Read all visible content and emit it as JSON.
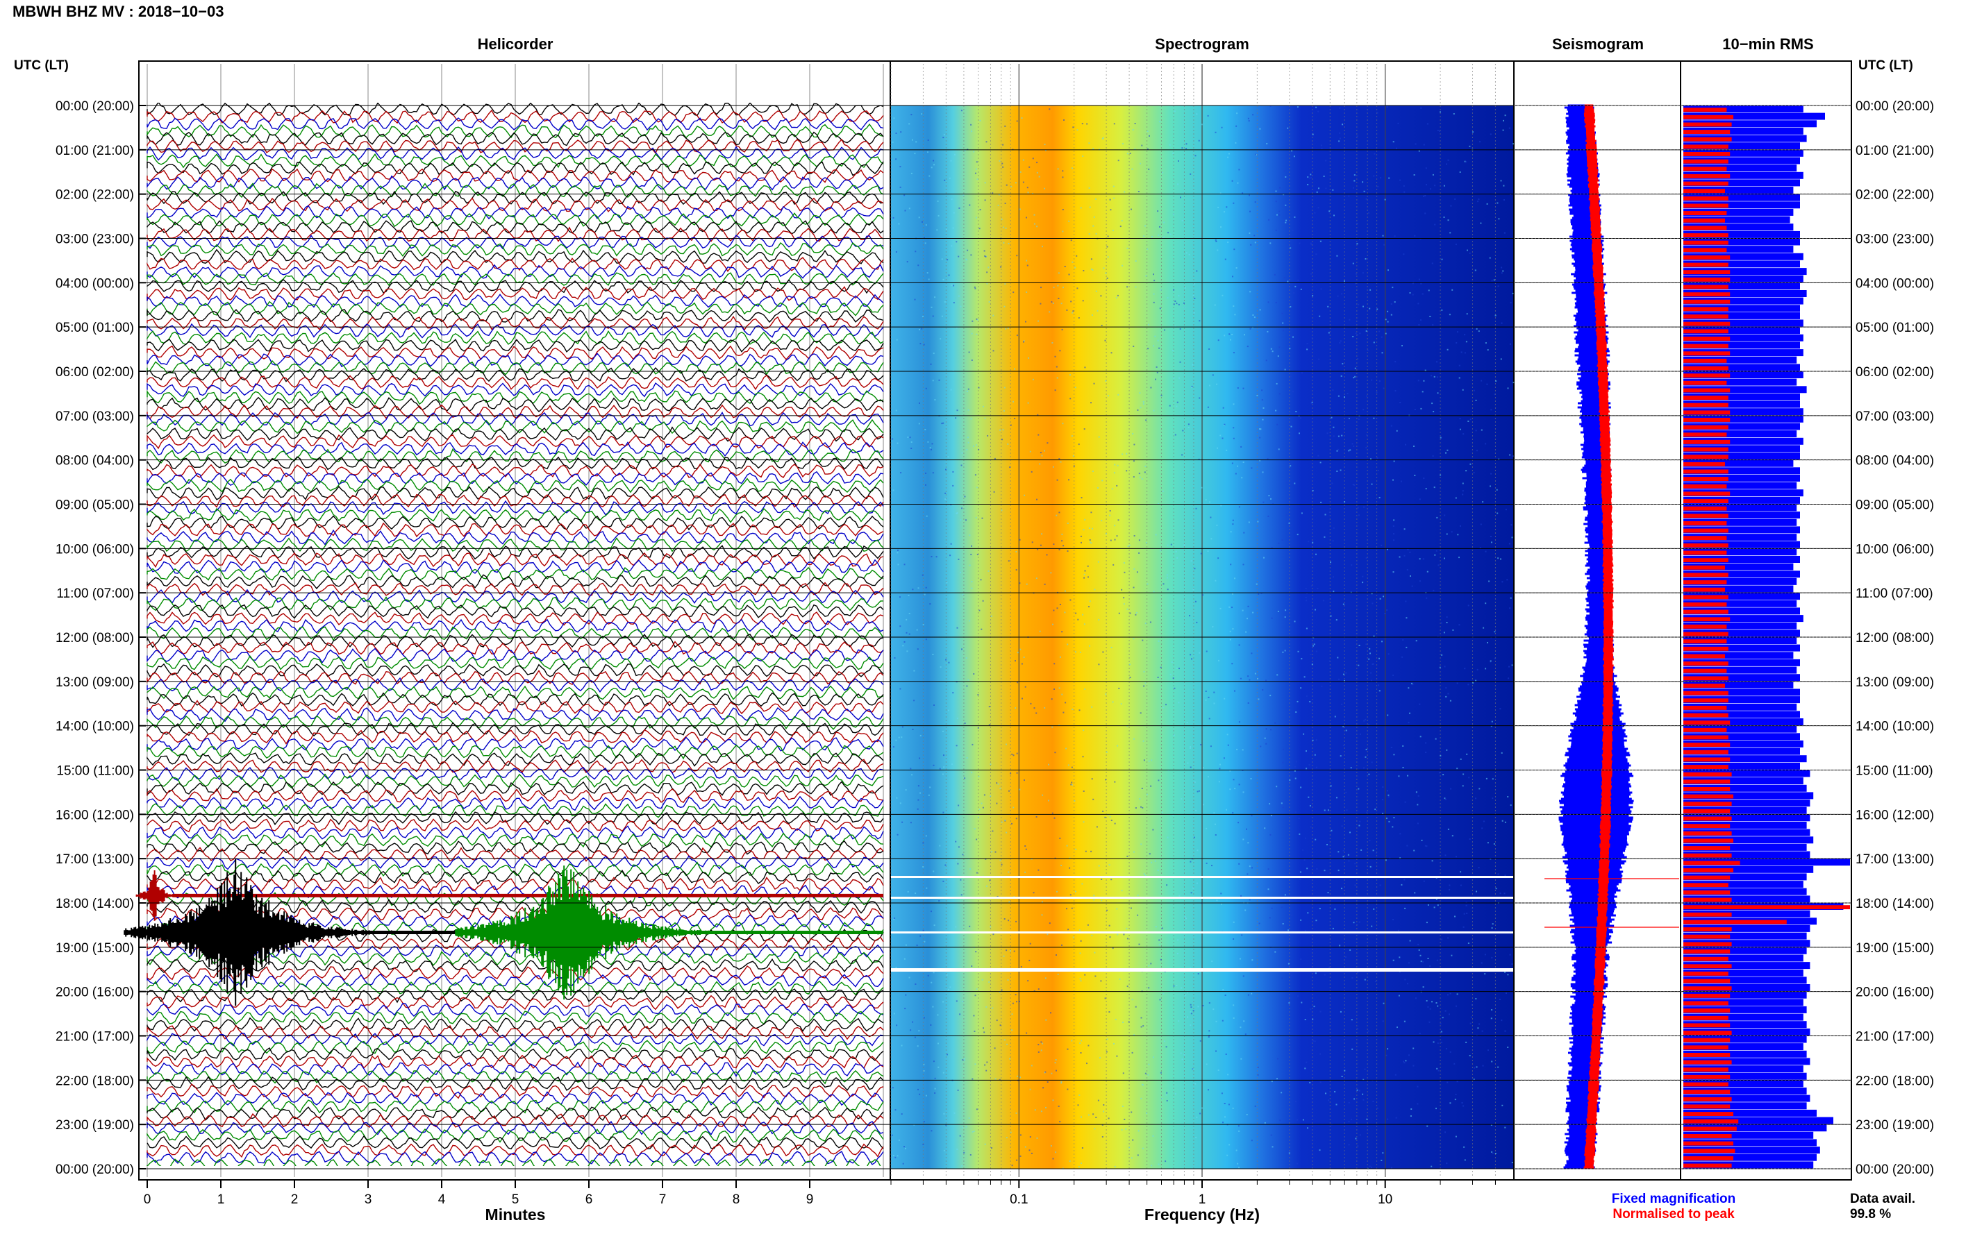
{
  "header": {
    "title": "MBWH BHZ MV : 2018−10−03",
    "utc_label_left": "UTC (LT)",
    "utc_label_right": "UTC (LT)"
  },
  "panels": {
    "helicorder": "Helicorder",
    "spectrogram": "Spectrogram",
    "seismogram": "Seismogram",
    "rms": "10−min RMS"
  },
  "footer": {
    "fixed_magnification": "Fixed magnification",
    "normalised_to_peak": "Normalised to peak",
    "data_avail_label": "Data avail.",
    "data_avail_value": "99.8 %"
  },
  "colors": {
    "trace_black": "#000000",
    "trace_red": "#b00000",
    "trace_blue": "#0000c8",
    "trace_green": "#008c00",
    "blue": "#0000ff",
    "red": "#ff0000"
  },
  "chart_data": [
    {
      "type": "line",
      "panel": "helicorder",
      "title": "Helicorder",
      "xlabel": "Minutes",
      "xlim": [
        0,
        10
      ],
      "xticks": [
        "0",
        "1",
        "2",
        "3",
        "4",
        "5",
        "6",
        "7",
        "8",
        "9"
      ],
      "hour_labels": [
        "00:00 (20:00)",
        "01:00 (21:00)",
        "02:00 (22:00)",
        "03:00 (23:00)",
        "04:00 (00:00)",
        "05:00 (01:00)",
        "06:00 (02:00)",
        "07:00 (03:00)",
        "08:00 (04:00)",
        "09:00 (05:00)",
        "10:00 (06:00)",
        "11:00 (07:00)",
        "12:00 (08:00)",
        "13:00 (09:00)",
        "14:00 (10:00)",
        "15:00 (11:00)",
        "16:00 (12:00)",
        "17:00 (13:00)",
        "18:00 (14:00)",
        "19:00 (15:00)",
        "20:00 (16:00)",
        "21:00 (17:00)",
        "22:00 (18:00)",
        "23:00 (19:00)",
        "00:00 (20:00)"
      ],
      "trace_color_cycle": [
        "black",
        "red",
        "blue",
        "green"
      ],
      "events": [
        {
          "utc": "17:50",
          "minute": 0.1,
          "color": "red"
        },
        {
          "utc": "18:40",
          "minute": 1.2,
          "color": "black"
        },
        {
          "utc": "18:40",
          "minute": 5.7,
          "color": "green"
        }
      ]
    },
    {
      "type": "heatmap",
      "panel": "spectrogram",
      "title": "Spectrogram",
      "xlabel": "Frequency (Hz)",
      "xscale": "log",
      "xticks": [
        "0.1",
        "1",
        "10"
      ],
      "xlim": [
        0.02,
        50
      ],
      "peak_band_hz": 0.2
    },
    {
      "type": "line",
      "panel": "seismogram",
      "title": "Seismogram",
      "series": [
        {
          "name": "Fixed magnification",
          "color": "blue"
        },
        {
          "name": "Normalised to peak",
          "color": "red"
        }
      ]
    },
    {
      "type": "bar",
      "panel": "rms",
      "title": "10−min RMS",
      "orientation": "horizontal",
      "blue_relative": [
        0.72,
        0.85,
        0.8,
        0.72,
        0.74,
        0.7,
        0.72,
        0.7,
        0.68,
        0.72,
        0.7,
        0.66,
        0.7,
        0.7,
        0.66,
        0.64,
        0.66,
        0.7,
        0.7,
        0.66,
        0.72,
        0.7,
        0.74,
        0.72,
        0.7,
        0.74,
        0.72,
        0.7,
        0.7,
        0.72,
        0.7,
        0.72,
        0.7,
        0.72,
        0.68,
        0.7,
        0.72,
        0.68,
        0.74,
        0.7,
        0.7,
        0.72,
        0.72,
        0.7,
        0.68,
        0.72,
        0.7,
        0.7,
        0.66,
        0.7,
        0.7,
        0.68,
        0.72,
        0.7,
        0.68,
        0.7,
        0.68,
        0.7,
        0.68,
        0.7,
        0.68,
        0.7,
        0.66,
        0.7,
        0.68,
        0.66,
        0.7,
        0.68,
        0.7,
        0.72,
        0.68,
        0.7,
        0.68,
        0.7,
        0.66,
        0.7,
        0.68,
        0.7,
        0.66,
        0.7,
        0.7,
        0.68,
        0.7,
        0.72,
        0.68,
        0.7,
        0.72,
        0.7,
        0.74,
        0.7,
        0.76,
        0.72,
        0.74,
        0.78,
        0.76,
        0.74,
        0.76,
        0.74,
        0.76,
        0.78,
        0.74,
        0.76,
        1.0,
        0.78,
        0.74,
        0.72,
        0.74,
        0.76,
        0.96,
        0.76,
        0.8,
        0.76,
        0.74,
        0.76,
        0.74,
        0.72,
        0.76,
        0.72,
        0.74,
        0.76,
        0.74,
        0.72,
        0.74,
        0.72,
        0.74,
        0.76,
        0.74,
        0.72,
        0.74,
        0.76,
        0.72,
        0.74,
        0.72,
        0.74,
        0.76,
        0.74,
        0.8,
        0.9,
        0.86,
        0.78,
        0.8,
        0.82,
        0.8,
        0.78
      ],
      "red_relative": [
        0.26,
        0.3,
        0.29,
        0.28,
        0.29,
        0.27,
        0.28,
        0.27,
        0.26,
        0.28,
        0.27,
        0.25,
        0.27,
        0.27,
        0.26,
        0.25,
        0.26,
        0.27,
        0.27,
        0.26,
        0.28,
        0.27,
        0.28,
        0.28,
        0.27,
        0.28,
        0.28,
        0.27,
        0.27,
        0.28,
        0.27,
        0.28,
        0.27,
        0.28,
        0.26,
        0.27,
        0.28,
        0.26,
        0.28,
        0.27,
        0.27,
        0.28,
        0.28,
        0.27,
        0.26,
        0.28,
        0.27,
        0.27,
        0.25,
        0.27,
        0.27,
        0.26,
        0.28,
        0.27,
        0.26,
        0.27,
        0.26,
        0.27,
        0.26,
        0.27,
        0.26,
        0.27,
        0.25,
        0.27,
        0.26,
        0.25,
        0.27,
        0.26,
        0.27,
        0.28,
        0.26,
        0.27,
        0.26,
        0.27,
        0.25,
        0.27,
        0.26,
        0.27,
        0.25,
        0.27,
        0.27,
        0.26,
        0.27,
        0.28,
        0.26,
        0.27,
        0.28,
        0.27,
        0.28,
        0.27,
        0.29,
        0.28,
        0.28,
        0.3,
        0.29,
        0.28,
        0.29,
        0.28,
        0.29,
        0.3,
        0.28,
        0.29,
        0.34,
        0.3,
        0.28,
        0.27,
        0.28,
        0.29,
        1.0,
        0.29,
        0.62,
        0.29,
        0.28,
        0.29,
        0.28,
        0.27,
        0.29,
        0.27,
        0.28,
        0.29,
        0.28,
        0.27,
        0.28,
        0.27,
        0.28,
        0.29,
        0.28,
        0.27,
        0.28,
        0.29,
        0.27,
        0.28,
        0.27,
        0.28,
        0.29,
        0.28,
        0.3,
        0.33,
        0.32,
        0.29,
        0.3,
        0.31,
        0.3,
        0.29
      ]
    }
  ]
}
